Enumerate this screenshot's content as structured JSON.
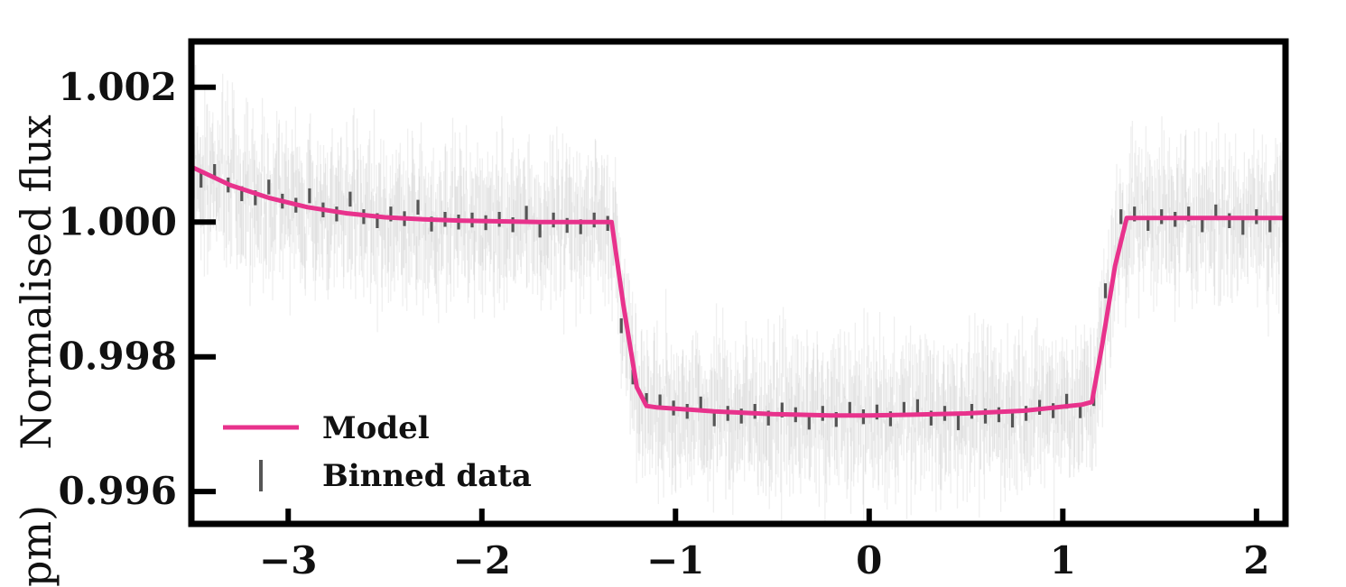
{
  "chart_data": {
    "type": "line",
    "ylabel": "Normalised flux",
    "xlabel_partial": "pm)",
    "xlim": [
      -3.5,
      2.15
    ],
    "ylim": [
      0.99552,
      1.00268
    ],
    "xticks": [
      -3,
      -2,
      -1,
      0,
      1,
      2
    ],
    "xtick_labels": [
      "−3",
      "−2",
      "−1",
      "0",
      "1",
      "2"
    ],
    "yticks": [
      0.996,
      0.998,
      1.0,
      1.002
    ],
    "ytick_labels": [
      "0.996",
      "0.998",
      "1.000",
      "1.002"
    ],
    "legend": {
      "placement": "lower-left",
      "entries": [
        "Model",
        "Binned data"
      ]
    },
    "colors": {
      "model": "#e8328c",
      "binned": "#555555",
      "raw": "#9a9a9a",
      "frame": "#000000"
    },
    "series": [
      {
        "name": "Model",
        "x": [
          -3.5,
          -3.3,
          -3.1,
          -2.9,
          -2.7,
          -2.5,
          -2.3,
          -2.1,
          -1.9,
          -1.7,
          -1.5,
          -1.33,
          -1.27,
          -1.2,
          -1.15,
          -1.1,
          -0.8,
          -0.5,
          -0.2,
          0.0,
          0.2,
          0.5,
          0.8,
          1.0,
          1.1,
          1.15,
          1.2,
          1.27,
          1.33,
          1.6,
          1.9,
          2.15
        ],
        "y": [
          1.00082,
          1.00055,
          1.00036,
          1.00022,
          1.00013,
          1.00007,
          1.00004,
          1.00002,
          1.00001,
          1.0,
          1.0,
          1.0,
          0.99878,
          0.99755,
          0.99727,
          0.99725,
          0.99719,
          0.99715,
          0.99713,
          0.99713,
          0.99714,
          0.99716,
          0.9972,
          0.99726,
          0.99729,
          0.99733,
          0.99812,
          0.99935,
          1.00006,
          1.00006,
          1.00006,
          1.00006
        ]
      },
      {
        "name": "Binned data",
        "x": [
          -3.45,
          -3.38,
          -3.31,
          -3.24,
          -3.17,
          -3.1,
          -3.03,
          -2.96,
          -2.89,
          -2.82,
          -2.75,
          -2.68,
          -2.61,
          -2.54,
          -2.47,
          -2.4,
          -2.33,
          -2.26,
          -2.19,
          -2.12,
          -2.05,
          -1.98,
          -1.91,
          -1.84,
          -1.77,
          -1.7,
          -1.63,
          -1.56,
          -1.49,
          -1.42,
          -1.35,
          -1.28,
          -1.22,
          -1.15,
          -1.08,
          -1.01,
          -0.94,
          -0.87,
          -0.8,
          -0.73,
          -0.66,
          -0.59,
          -0.52,
          -0.45,
          -0.38,
          -0.31,
          -0.24,
          -0.17,
          -0.1,
          -0.03,
          0.04,
          0.11,
          0.18,
          0.25,
          0.32,
          0.39,
          0.46,
          0.53,
          0.6,
          0.67,
          0.74,
          0.81,
          0.88,
          0.95,
          1.02,
          1.09,
          1.16,
          1.22,
          1.3,
          1.37,
          1.44,
          1.51,
          1.58,
          1.65,
          1.72,
          1.79,
          1.86,
          1.93,
          2.0,
          2.07
        ],
        "y": [
          1.00062,
          1.00075,
          1.00055,
          1.00042,
          1.00036,
          1.00052,
          1.00031,
          1.00025,
          1.00039,
          1.00018,
          1.00012,
          1.00034,
          1.00008,
          1.00002,
          1.00012,
          1.00005,
          1.00022,
          0.99997,
          1.00004,
          1.0,
          1.00003,
          0.99999,
          1.00004,
          0.99996,
          1.00013,
          0.99988,
          1.00003,
          0.99995,
          0.99993,
          1.00003,
          0.99998,
          0.99846,
          0.9977,
          0.99735,
          0.99733,
          0.99724,
          0.99719,
          0.9973,
          0.99708,
          0.99716,
          0.99712,
          0.99719,
          0.99709,
          0.99721,
          0.99714,
          0.99703,
          0.99716,
          0.99707,
          0.99722,
          0.99711,
          0.99718,
          0.99708,
          0.99722,
          0.99726,
          0.99709,
          0.99716,
          0.99702,
          0.99719,
          0.99712,
          0.99714,
          0.99706,
          0.99716,
          0.99725,
          0.9972,
          0.99734,
          0.9972,
          0.99738,
          0.99898,
          1.00008,
          1.00012,
          0.99998,
          1.00008,
          1.00004,
          1.00012,
          0.99996,
          1.00015,
          1.00002,
          0.99992,
          1.00008,
          0.99996
        ]
      }
    ]
  }
}
